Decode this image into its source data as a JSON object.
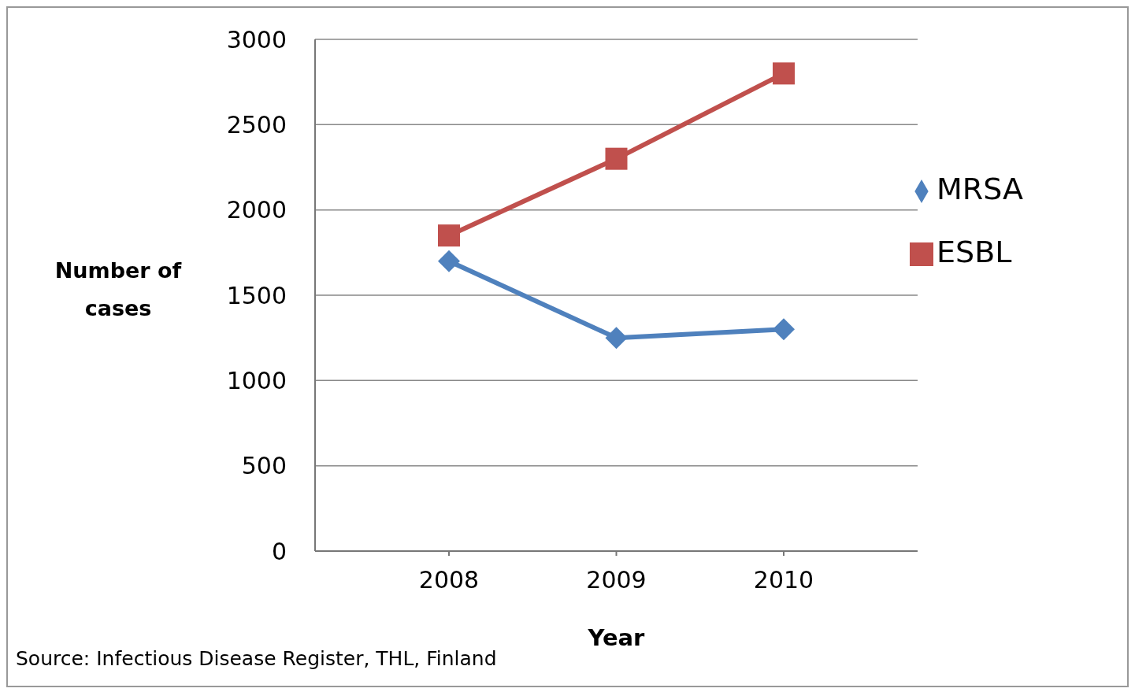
{
  "chart_data": {
    "type": "line",
    "xlabel": "Year",
    "ylabel": "Number of cases",
    "categories": [
      "2008",
      "2009",
      "2010"
    ],
    "series": [
      {
        "name": "MRSA",
        "color": "#4f81bd",
        "marker": "diamond",
        "values": [
          1700,
          1250,
          1300
        ]
      },
      {
        "name": "ESBL",
        "color": "#c0504d",
        "marker": "square",
        "values": [
          1850,
          2300,
          2800
        ]
      }
    ],
    "ylim": [
      0,
      3000
    ],
    "yticks": [
      0,
      500,
      1000,
      1500,
      2000,
      2500,
      3000
    ],
    "grid": "y",
    "legend": "right",
    "line_style": "solid",
    "annotations": [
      "Source: Infectious Disease Register, THL, Finland"
    ]
  }
}
